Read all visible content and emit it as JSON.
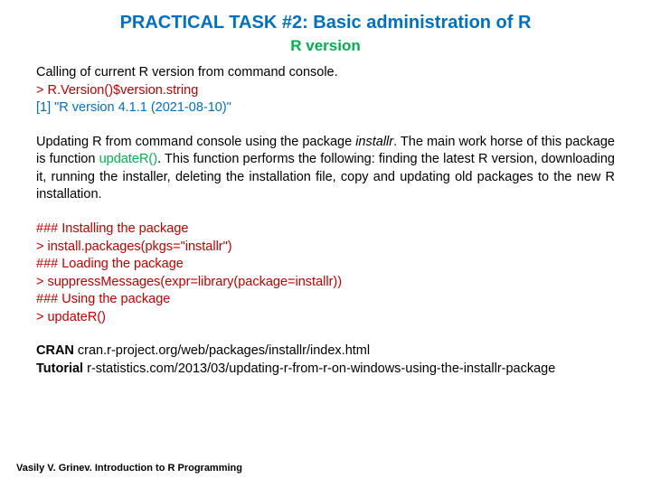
{
  "colors": {
    "title": "#0070c0",
    "subtitle": "#00b050",
    "body": "#000000",
    "code_red": "#c00000",
    "code_blue": "#0070c0",
    "func_green": "#00b050",
    "background": "#ffffff"
  },
  "typography": {
    "title_size_pt": 20,
    "subtitle_size_pt": 17,
    "body_size_pt": 14.5,
    "footer_size_pt": 11,
    "font_family": "Arial"
  },
  "title": "PRACTICAL TASK #2: Basic administration of R",
  "subtitle": "R version",
  "p1": "Calling of current R version from command console.",
  "code_version_cmd": "> R.Version()$version.string",
  "code_version_out": "[1] \"R version 4.1.1 (2021-08-10)\"",
  "p2_a": "Updating R from command console using the package ",
  "p2_pkg": "installr",
  "p2_b": ". The main work horse of this package is function ",
  "p2_func": "updateR()",
  "p2_c": ". This function performs the following: finding the latest R version, downloading it, running the installer, deleting the installation file, copy and updating old packages to the new R installation.",
  "h_install": "### Installing the package",
  "cmd_install": "> install.packages(pkgs=\"installr\")",
  "h_load": "### Loading the package",
  "cmd_load": "> suppressMessages(expr=library(package=installr))",
  "h_use": "### Using the package",
  "cmd_use": "> updateR()",
  "cran_label": "CRAN",
  "cran_url": " cran.r-project.org/web/packages/installr/index.html",
  "tutorial_label": "Tutorial",
  "tutorial_url": " r-statistics.com/2013/03/updating-r-from-r-on-windows-using-the-installr-package",
  "footer": "Vasily V. Grinev. Introduction to R Programming"
}
